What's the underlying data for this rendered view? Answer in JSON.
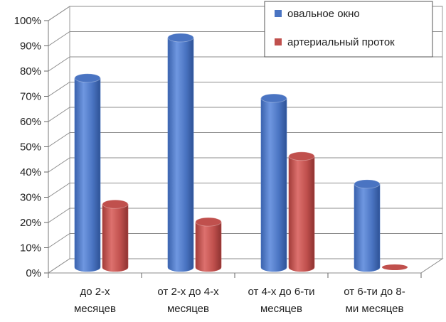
{
  "chart_data": {
    "type": "bar",
    "categories": [
      [
        "до 2-х",
        "месяцев"
      ],
      [
        "от 2-х до 4-х",
        "месяцев"
      ],
      [
        "от 4-х до 6-ти",
        "месяцев"
      ],
      [
        "от 6-ти до 8-",
        "ми месяцев"
      ]
    ],
    "series": [
      {
        "name": "овальное окно",
        "values": [
          75,
          91,
          67,
          33
        ],
        "color": "#4a74c2"
      },
      {
        "name": "артериальный проток",
        "values": [
          25,
          18,
          44,
          0
        ],
        "color": "#c0504d"
      }
    ],
    "yticks": [
      "0%",
      "10%",
      "20%",
      "30%",
      "40%",
      "50%",
      "60%",
      "70%",
      "80%",
      "90%",
      "100%"
    ],
    "ylim": [
      0,
      100
    ],
    "title": "",
    "xlabel": "",
    "ylabel": "",
    "grid": true,
    "legend": "top-right",
    "style": "3d-cylinder"
  }
}
